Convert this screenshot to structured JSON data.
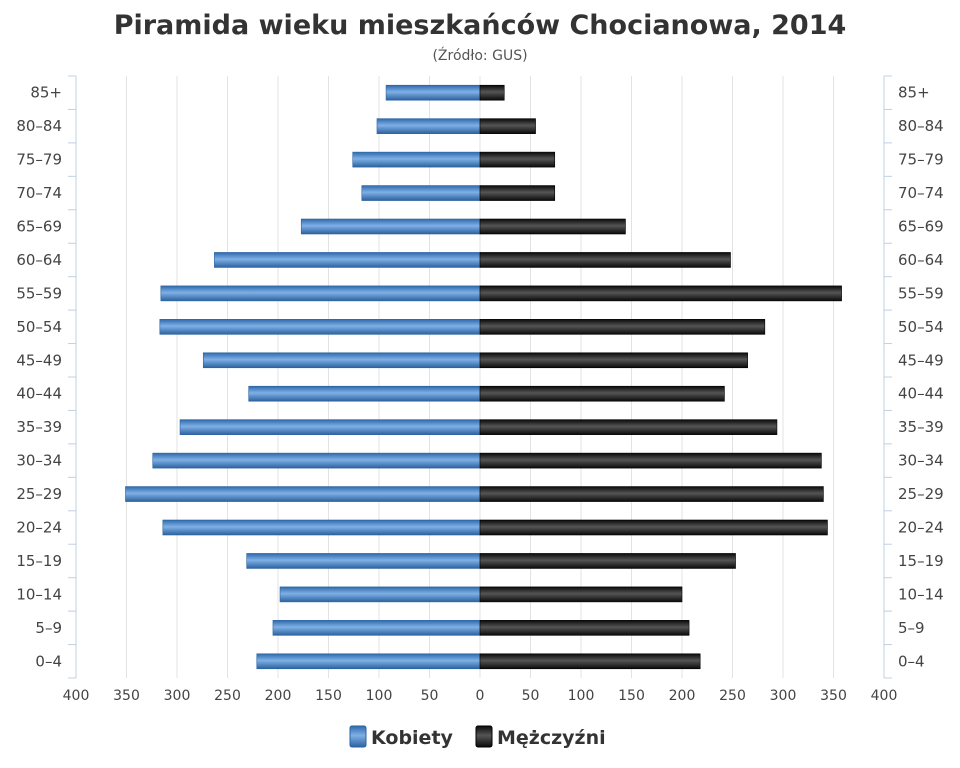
{
  "chart_data": {
    "type": "bar",
    "orientation": "horizontal",
    "title": "Piramida wieku mieszkańców Chocianowa, 2014",
    "subtitle": "(Źródło: GUS)",
    "categories": [
      "0–4",
      "5–9",
      "10–14",
      "15–19",
      "20–24",
      "25–29",
      "30–34",
      "35–39",
      "40–44",
      "45–49",
      "50–54",
      "55–59",
      "60–64",
      "65–69",
      "70–74",
      "75–79",
      "80–84",
      "85+"
    ],
    "series": [
      {
        "name": "Kobiety",
        "color": "#4a86c8",
        "values": [
          221,
          205,
          198,
          231,
          314,
          351,
          324,
          297,
          229,
          274,
          317,
          316,
          263,
          177,
          117,
          126,
          102,
          93
        ]
      },
      {
        "name": "Mężczyźni",
        "color": "#1c1c1c",
        "values": [
          218,
          207,
          200,
          253,
          344,
          340,
          338,
          294,
          242,
          265,
          282,
          358,
          248,
          144,
          74,
          74,
          55,
          24
        ]
      }
    ],
    "xlim": [
      -400,
      400
    ],
    "xticks": [
      "400",
      "350",
      "300",
      "250",
      "200",
      "150",
      "100",
      "50",
      "0",
      "50",
      "100",
      "150",
      "200",
      "250",
      "300",
      "350",
      "400"
    ],
    "grid": true,
    "legend": "bottom"
  }
}
